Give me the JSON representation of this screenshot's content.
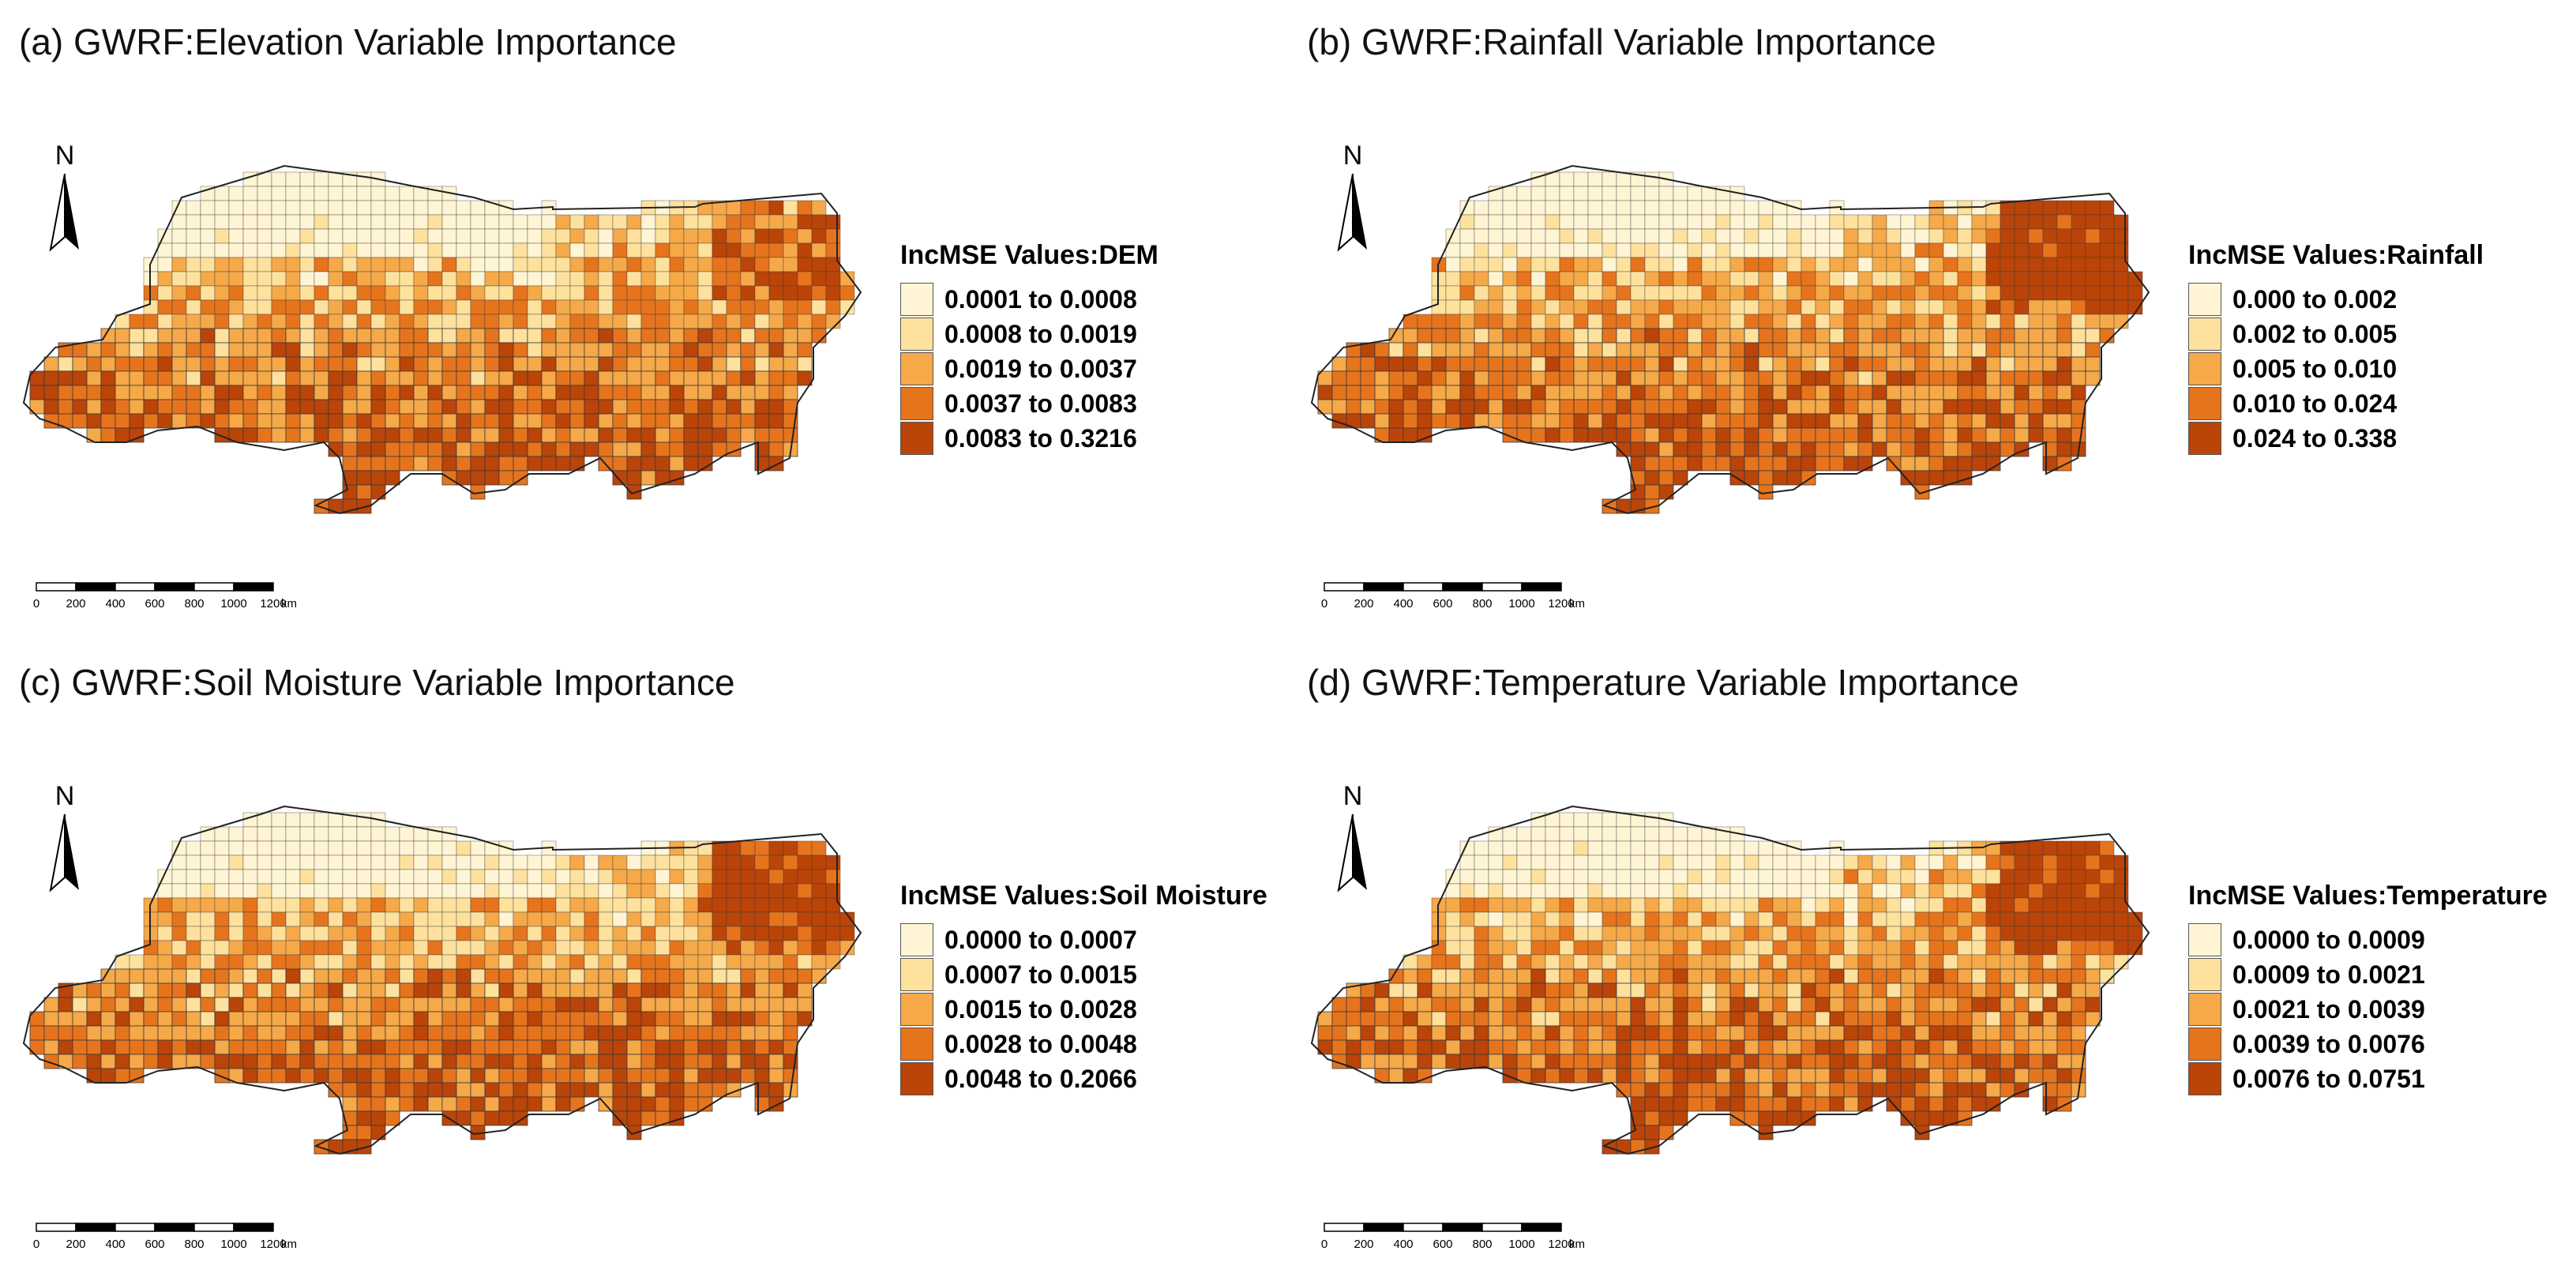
{
  "colors": {
    "class1": "#fff5d4",
    "class2": "#fee19d",
    "class3": "#f6a948",
    "class4": "#e6741d",
    "class5": "#bb4408",
    "border": "#3a3a3a"
  },
  "north_label": "N",
  "scalebar": {
    "ticks": [
      "0",
      "200",
      "400",
      "600",
      "800",
      "1000",
      "1200"
    ],
    "unit": "km"
  },
  "panels": [
    {
      "title": "(a) GWRF:Elevation Variable Importance",
      "legend_title": "IncMSE Values:DEM",
      "classes": [
        "0.0001 to 0.0008",
        "0.0008 to 0.0019",
        "0.0019 to 0.0037",
        "0.0037 to 0.0083",
        "0.0083 to 0.3216"
      ]
    },
    {
      "title": "(b) GWRF:Rainfall Variable Importance",
      "legend_title": "IncMSE Values:Rainfall",
      "classes": [
        "0.000 to 0.002",
        "0.002 to 0.005",
        "0.005 to 0.010",
        "0.010 to 0.024",
        "0.024 to 0.338"
      ]
    },
    {
      "title": "(c) GWRF:Soil Moisture Variable Importance",
      "legend_title": "IncMSE Values:Soil Moisture",
      "classes": [
        "0.0000 to 0.0007",
        "0.0007 to 0.0015",
        "0.0015 to 0.0028",
        "0.0028 to 0.0048",
        "0.0048 to 0.2066"
      ]
    },
    {
      "title": "(d) GWRF:Temperature Variable Importance",
      "legend_title": "IncMSE Values:Temperature",
      "classes": [
        "0.0000 to 0.0009",
        "0.0009 to 0.0021",
        "0.0021 to 0.0039",
        "0.0039 to 0.0076",
        "0.0076 to 0.0751"
      ]
    }
  ]
}
